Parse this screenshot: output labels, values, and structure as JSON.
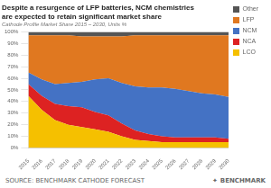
{
  "chart_data": {
    "type": "area",
    "stacked": true,
    "title": [
      "Despite a resurgence of LFP batteries, NCM chemistries",
      "are expected to retain significant market share"
    ],
    "subtitle": "Cathode Profile Market Share 2015 – 2030, Units %",
    "annotations": [
      "SOURCE: BENCHMARK CATHODE FORECAST",
      "✦",
      "BENCHMARK"
    ],
    "x": [
      2015,
      2016,
      2017,
      2018,
      2019,
      2020,
      2021,
      2022,
      2023,
      2024,
      2025,
      2026,
      2027,
      2028,
      2029,
      2030
    ],
    "xlim": [
      2015,
      2030
    ],
    "xticks": [
      2015,
      2016,
      2017,
      2018,
      2019,
      2020,
      2021,
      2022,
      2023,
      2024,
      2025,
      2026,
      2027,
      2028,
      2029,
      2030
    ],
    "series": [
      {
        "name": "LCO",
        "color": "#f5c000",
        "values": [
          45,
          33,
          24,
          20,
          18,
          16,
          14,
          10,
          7,
          6,
          5,
          5,
          5,
          5,
          5,
          5
        ]
      },
      {
        "name": "NCA",
        "color": "#dd2222",
        "values": [
          10,
          12,
          14,
          16,
          17,
          15,
          14,
          11,
          8,
          6,
          5,
          4,
          4,
          4,
          4,
          3
        ]
      },
      {
        "name": "NCM",
        "color": "#4472c4",
        "values": [
          10,
          14,
          17,
          20,
          22,
          28,
          32,
          35,
          38,
          40,
          42,
          42,
          40,
          38,
          37,
          36
        ]
      },
      {
        "name": "LFP",
        "color": "#e07820",
        "values": [
          32,
          38,
          42,
          41,
          39,
          37,
          36,
          40,
          44,
          45,
          45,
          46,
          48,
          50,
          51,
          53
        ]
      },
      {
        "name": "Other",
        "color": "#555555",
        "values": [
          3,
          3,
          3,
          3,
          4,
          4,
          4,
          4,
          3,
          3,
          3,
          3,
          3,
          3,
          3,
          3
        ]
      }
    ],
    "ylim": [
      0,
      100
    ],
    "yticks": [
      {
        "value": 0,
        "label": "0%"
      },
      {
        "value": 10,
        "label": "10%"
      },
      {
        "value": 20,
        "label": "20%"
      },
      {
        "value": 30,
        "label": "30%"
      },
      {
        "value": 40,
        "label": "40%"
      },
      {
        "value": 50,
        "label": "50%"
      },
      {
        "value": 60,
        "label": "60%"
      },
      {
        "value": 70,
        "label": "70%"
      },
      {
        "value": 80,
        "label": "80%"
      },
      {
        "value": 90,
        "label": "90%"
      },
      {
        "value": 100,
        "label": "100%"
      }
    ],
    "grid": true,
    "legend": "right"
  }
}
